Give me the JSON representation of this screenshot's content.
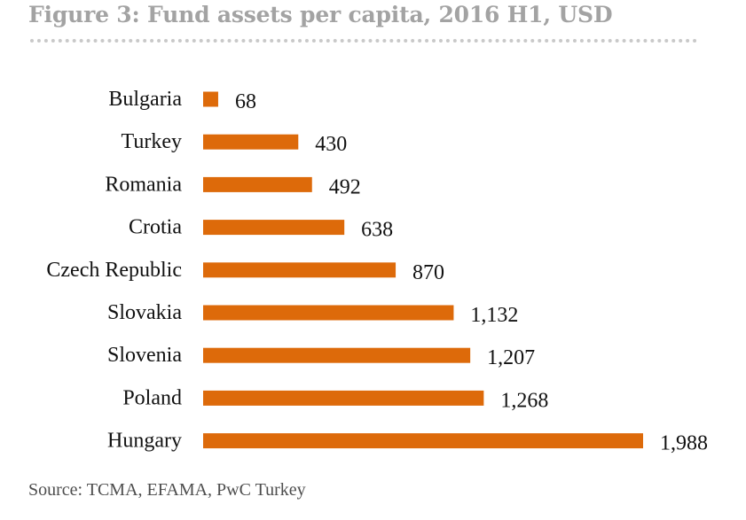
{
  "figure": {
    "title": "Figure 3: Fund assets per capita, 2016 H1, USD",
    "source": "Source: TCMA, EFAMA, PwC Turkey"
  },
  "colors": {
    "bar": "#dd6a0a",
    "title": "#a3a3a3",
    "rule": "#c9c9c9"
  },
  "chart_data": {
    "type": "bar",
    "orientation": "horizontal",
    "title": "Figure 3: Fund assets per capita, 2016 H1, USD",
    "categories": [
      "Bulgaria",
      "Turkey",
      "Romania",
      "Crotia",
      "Czech Republic",
      "Slovakia",
      "Slovenia",
      "Poland",
      "Hungary"
    ],
    "values": [
      68,
      430,
      492,
      638,
      870,
      1132,
      1207,
      1268,
      1988
    ],
    "value_labels": [
      "68",
      "430",
      "492",
      "638",
      "870",
      "1,132",
      "1,207",
      "1,268",
      "1,988"
    ],
    "xlim": [
      0,
      1988
    ],
    "grid": false,
    "legend": "none",
    "xlabel": "",
    "ylabel": ""
  }
}
